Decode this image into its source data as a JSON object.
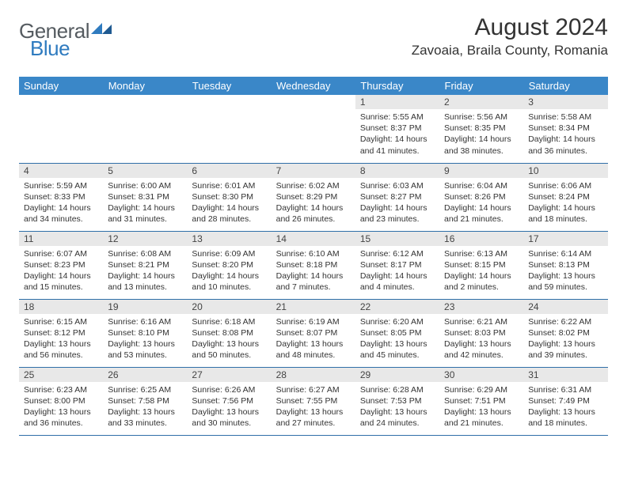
{
  "logo": {
    "word1": "General",
    "word2": "Blue"
  },
  "header": {
    "title": "August 2024",
    "location": "Zavoaia, Braila County, Romania"
  },
  "weekdays": [
    "Sunday",
    "Monday",
    "Tuesday",
    "Wednesday",
    "Thursday",
    "Friday",
    "Saturday"
  ],
  "colors": {
    "header_bg": "#3a87c8",
    "rule": "#2f6fa8",
    "daynum_bg": "#e8e8e8"
  },
  "weeks": [
    [
      null,
      null,
      null,
      null,
      {
        "n": "1",
        "sr": "5:55 AM",
        "ss": "8:37 PM",
        "dl": "14 hours and 41 minutes."
      },
      {
        "n": "2",
        "sr": "5:56 AM",
        "ss": "8:35 PM",
        "dl": "14 hours and 38 minutes."
      },
      {
        "n": "3",
        "sr": "5:58 AM",
        "ss": "8:34 PM",
        "dl": "14 hours and 36 minutes."
      }
    ],
    [
      {
        "n": "4",
        "sr": "5:59 AM",
        "ss": "8:33 PM",
        "dl": "14 hours and 34 minutes."
      },
      {
        "n": "5",
        "sr": "6:00 AM",
        "ss": "8:31 PM",
        "dl": "14 hours and 31 minutes."
      },
      {
        "n": "6",
        "sr": "6:01 AM",
        "ss": "8:30 PM",
        "dl": "14 hours and 28 minutes."
      },
      {
        "n": "7",
        "sr": "6:02 AM",
        "ss": "8:29 PM",
        "dl": "14 hours and 26 minutes."
      },
      {
        "n": "8",
        "sr": "6:03 AM",
        "ss": "8:27 PM",
        "dl": "14 hours and 23 minutes."
      },
      {
        "n": "9",
        "sr": "6:04 AM",
        "ss": "8:26 PM",
        "dl": "14 hours and 21 minutes."
      },
      {
        "n": "10",
        "sr": "6:06 AM",
        "ss": "8:24 PM",
        "dl": "14 hours and 18 minutes."
      }
    ],
    [
      {
        "n": "11",
        "sr": "6:07 AM",
        "ss": "8:23 PM",
        "dl": "14 hours and 15 minutes."
      },
      {
        "n": "12",
        "sr": "6:08 AM",
        "ss": "8:21 PM",
        "dl": "14 hours and 13 minutes."
      },
      {
        "n": "13",
        "sr": "6:09 AM",
        "ss": "8:20 PM",
        "dl": "14 hours and 10 minutes."
      },
      {
        "n": "14",
        "sr": "6:10 AM",
        "ss": "8:18 PM",
        "dl": "14 hours and 7 minutes."
      },
      {
        "n": "15",
        "sr": "6:12 AM",
        "ss": "8:17 PM",
        "dl": "14 hours and 4 minutes."
      },
      {
        "n": "16",
        "sr": "6:13 AM",
        "ss": "8:15 PM",
        "dl": "14 hours and 2 minutes."
      },
      {
        "n": "17",
        "sr": "6:14 AM",
        "ss": "8:13 PM",
        "dl": "13 hours and 59 minutes."
      }
    ],
    [
      {
        "n": "18",
        "sr": "6:15 AM",
        "ss": "8:12 PM",
        "dl": "13 hours and 56 minutes."
      },
      {
        "n": "19",
        "sr": "6:16 AM",
        "ss": "8:10 PM",
        "dl": "13 hours and 53 minutes."
      },
      {
        "n": "20",
        "sr": "6:18 AM",
        "ss": "8:08 PM",
        "dl": "13 hours and 50 minutes."
      },
      {
        "n": "21",
        "sr": "6:19 AM",
        "ss": "8:07 PM",
        "dl": "13 hours and 48 minutes."
      },
      {
        "n": "22",
        "sr": "6:20 AM",
        "ss": "8:05 PM",
        "dl": "13 hours and 45 minutes."
      },
      {
        "n": "23",
        "sr": "6:21 AM",
        "ss": "8:03 PM",
        "dl": "13 hours and 42 minutes."
      },
      {
        "n": "24",
        "sr": "6:22 AM",
        "ss": "8:02 PM",
        "dl": "13 hours and 39 minutes."
      }
    ],
    [
      {
        "n": "25",
        "sr": "6:23 AM",
        "ss": "8:00 PM",
        "dl": "13 hours and 36 minutes."
      },
      {
        "n": "26",
        "sr": "6:25 AM",
        "ss": "7:58 PM",
        "dl": "13 hours and 33 minutes."
      },
      {
        "n": "27",
        "sr": "6:26 AM",
        "ss": "7:56 PM",
        "dl": "13 hours and 30 minutes."
      },
      {
        "n": "28",
        "sr": "6:27 AM",
        "ss": "7:55 PM",
        "dl": "13 hours and 27 minutes."
      },
      {
        "n": "29",
        "sr": "6:28 AM",
        "ss": "7:53 PM",
        "dl": "13 hours and 24 minutes."
      },
      {
        "n": "30",
        "sr": "6:29 AM",
        "ss": "7:51 PM",
        "dl": "13 hours and 21 minutes."
      },
      {
        "n": "31",
        "sr": "6:31 AM",
        "ss": "7:49 PM",
        "dl": "13 hours and 18 minutes."
      }
    ]
  ],
  "labels": {
    "sunrise": "Sunrise:",
    "sunset": "Sunset:",
    "daylight": "Daylight:"
  }
}
